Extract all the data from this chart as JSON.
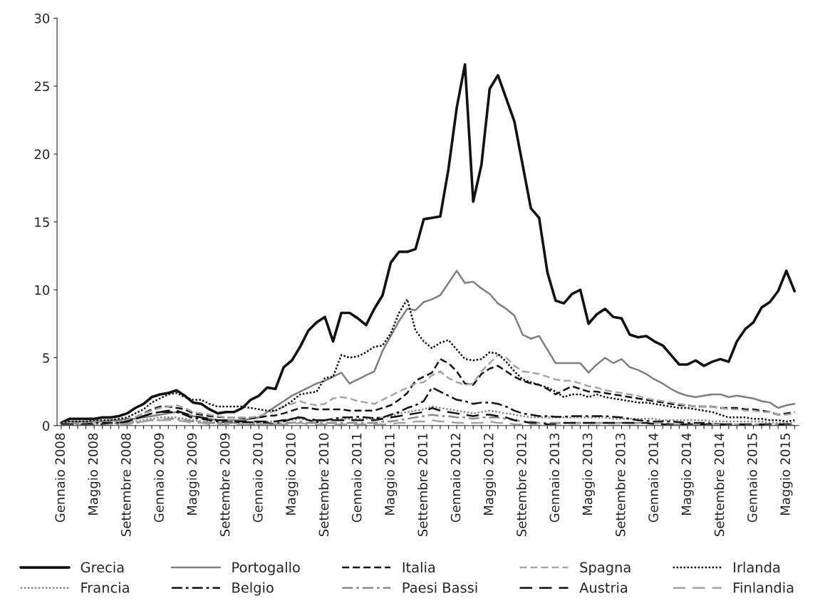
{
  "chart_data": {
    "type": "line",
    "ylim": [
      0,
      30
    ],
    "yticks": [
      0,
      5,
      10,
      15,
      20,
      25,
      30
    ],
    "grid": false,
    "legend": "bottom",
    "marker": "none",
    "categories": [
      "Gennaio 2008",
      null,
      null,
      null,
      "Maggio 2008",
      null,
      null,
      null,
      "Settembre 2008",
      null,
      null,
      null,
      "Gennaio 2009",
      null,
      null,
      null,
      "Maggio 2009",
      null,
      null,
      null,
      "Settembre 2009",
      null,
      null,
      null,
      "Gennaio 2010",
      null,
      null,
      null,
      "Maggio 2010",
      null,
      null,
      null,
      "Settembre 2010",
      null,
      null,
      null,
      "Gennaio 2011",
      null,
      null,
      null,
      "Maggio 2011",
      null,
      null,
      null,
      "Settembre 2011",
      null,
      null,
      null,
      "Gennaio 2012",
      null,
      null,
      null,
      "Maggio 2012",
      null,
      null,
      null,
      "Settembre 2012",
      null,
      null,
      null,
      "Gennaio 2013",
      null,
      null,
      null,
      "Maggio 2013",
      null,
      null,
      null,
      "Settembre 2013",
      null,
      null,
      null,
      "Gennaio 2014",
      null,
      null,
      null,
      "Maggio 2014",
      null,
      null,
      null,
      "Settembre 2014",
      null,
      null,
      null,
      "Gennaio 2015",
      null,
      null,
      null,
      "Maggio 2015",
      null
    ],
    "series": [
      {
        "name": "Grecia",
        "color": "#111111",
        "line_style": "solid",
        "values": [
          0.2,
          0.5,
          0.5,
          0.5,
          0.5,
          0.6,
          0.6,
          0.7,
          0.9,
          1.3,
          1.6,
          2.1,
          2.3,
          2.4,
          2.6,
          2.2,
          1.7,
          1.6,
          1.2,
          0.9,
          1.0,
          1.0,
          1.3,
          1.9,
          2.2,
          2.8,
          2.7,
          4.3,
          4.8,
          5.8,
          7.0,
          7.6,
          8.0,
          6.2,
          8.3,
          8.3,
          7.9,
          7.4,
          8.6,
          9.6,
          12.0,
          12.8,
          12.8,
          13.0,
          15.2,
          15.3,
          15.4,
          18.9,
          23.4,
          26.6,
          16.5,
          19.2,
          24.8,
          25.8,
          24.1,
          22.4,
          19.2,
          16.0,
          15.3,
          11.3,
          9.2,
          9.0,
          9.7,
          10.0,
          7.5,
          8.2,
          8.6,
          8.0,
          7.9,
          6.7,
          6.5,
          6.6,
          6.2,
          5.9,
          5.2,
          4.5,
          4.5,
          4.8,
          4.4,
          4.7,
          4.9,
          4.7,
          6.2,
          7.1,
          7.6,
          8.7,
          9.1,
          9.9,
          11.4,
          9.9
        ]
      },
      {
        "name": "Portogallo",
        "color": "#7f7f7f",
        "line_style": "solid",
        "values": [
          0.2,
          0.3,
          0.3,
          0.3,
          0.3,
          0.3,
          0.4,
          0.4,
          0.5,
          0.5,
          0.6,
          0.7,
          0.8,
          0.9,
          1.0,
          0.9,
          0.7,
          0.6,
          0.5,
          0.4,
          0.4,
          0.4,
          0.4,
          0.5,
          0.6,
          1.0,
          1.4,
          1.8,
          2.2,
          2.5,
          2.8,
          3.1,
          3.3,
          3.6,
          3.9,
          3.1,
          3.4,
          3.7,
          4.0,
          5.5,
          6.6,
          7.7,
          8.6,
          8.5,
          9.1,
          9.3,
          9.6,
          10.5,
          11.4,
          10.5,
          10.6,
          10.1,
          9.7,
          9.0,
          8.6,
          8.1,
          6.7,
          6.4,
          6.6,
          5.6,
          4.6,
          4.6,
          4.6,
          4.6,
          3.9,
          4.5,
          5.0,
          4.6,
          4.9,
          4.3,
          4.1,
          3.8,
          3.4,
          3.1,
          2.7,
          2.4,
          2.2,
          2.1,
          2.2,
          2.3,
          2.3,
          2.1,
          2.2,
          2.1,
          2.0,
          1.8,
          1.7,
          1.3,
          1.5,
          1.6
        ]
      },
      {
        "name": "Italia",
        "color": "#111111",
        "line_style": "dashed",
        "values": [
          0.2,
          0.2,
          0.2,
          0.2,
          0.3,
          0.3,
          0.3,
          0.3,
          0.4,
          0.6,
          0.9,
          1.2,
          1.4,
          1.4,
          1.3,
          1.2,
          0.9,
          0.8,
          0.7,
          0.65,
          0.6,
          0.6,
          0.55,
          0.55,
          0.6,
          0.7,
          0.75,
          0.9,
          1.1,
          1.3,
          1.3,
          1.2,
          1.2,
          1.2,
          1.2,
          1.1,
          1.1,
          1.1,
          1.1,
          1.3,
          1.5,
          1.9,
          2.4,
          3.3,
          3.6,
          3.9,
          4.9,
          4.6,
          4.0,
          3.1,
          3.0,
          3.8,
          4.2,
          4.4,
          4.0,
          3.6,
          3.3,
          3.1,
          3.0,
          2.7,
          2.3,
          2.6,
          2.9,
          2.7,
          2.5,
          2.5,
          2.4,
          2.3,
          2.2,
          2.1,
          2.0,
          1.9,
          1.8,
          1.7,
          1.6,
          1.5,
          1.5,
          1.4,
          1.4,
          1.4,
          1.3,
          1.3,
          1.3,
          1.2,
          1.2,
          1.1,
          1.0,
          0.8,
          0.9,
          1.0
        ]
      },
      {
        "name": "Spagna",
        "color": "#a6a6a6",
        "line_style": "dashed",
        "values": [
          0.2,
          0.2,
          0.2,
          0.2,
          0.3,
          0.3,
          0.3,
          0.3,
          0.4,
          0.6,
          0.9,
          1.1,
          1.3,
          1.4,
          1.5,
          1.3,
          1.0,
          0.9,
          0.8,
          0.7,
          0.6,
          0.6,
          0.6,
          0.6,
          0.7,
          0.9,
          1.1,
          1.4,
          1.6,
          1.8,
          1.6,
          1.5,
          1.6,
          2.0,
          2.1,
          2.0,
          1.8,
          1.7,
          1.6,
          1.9,
          2.2,
          2.5,
          2.8,
          3.1,
          3.2,
          3.7,
          4.0,
          3.5,
          3.2,
          3.0,
          3.1,
          4.0,
          4.6,
          5.2,
          5.0,
          4.4,
          4.0,
          3.9,
          3.8,
          3.6,
          3.4,
          3.3,
          3.3,
          3.1,
          2.9,
          2.8,
          2.6,
          2.5,
          2.4,
          2.3,
          2.2,
          2.0,
          1.9,
          1.8,
          1.7,
          1.6,
          1.5,
          1.4,
          1.4,
          1.4,
          1.3,
          1.2,
          1.2,
          1.1,
          1.1,
          1.0,
          1.0,
          0.8,
          0.8,
          0.9
        ]
      },
      {
        "name": "Irlanda",
        "color": "#111111",
        "line_style": "dotted",
        "values": [
          0.2,
          0.3,
          0.3,
          0.3,
          0.4,
          0.4,
          0.4,
          0.5,
          0.6,
          0.9,
          1.2,
          1.7,
          2.0,
          2.3,
          2.4,
          2.1,
          1.9,
          1.9,
          1.6,
          1.4,
          1.4,
          1.4,
          1.4,
          1.3,
          1.2,
          1.1,
          1.1,
          1.4,
          1.8,
          2.3,
          2.4,
          2.5,
          3.5,
          3.6,
          5.2,
          5.0,
          5.1,
          5.4,
          5.8,
          5.9,
          6.8,
          8.3,
          9.3,
          7.0,
          6.2,
          5.7,
          6.1,
          6.3,
          5.6,
          4.9,
          4.8,
          4.9,
          5.4,
          5.3,
          4.7,
          4.0,
          3.4,
          3.2,
          3.0,
          2.8,
          2.5,
          2.1,
          2.3,
          2.3,
          2.1,
          2.3,
          2.1,
          2.0,
          1.9,
          1.8,
          1.7,
          1.7,
          1.6,
          1.5,
          1.4,
          1.3,
          1.3,
          1.2,
          1.1,
          1.0,
          0.8,
          0.6,
          0.6,
          0.6,
          0.5,
          0.5,
          0.4,
          0.4,
          0.3,
          0.4
        ]
      },
      {
        "name": "Francia",
        "color": "#8c8c8c",
        "line_style": "dotted",
        "values": [
          0.1,
          0.1,
          0.1,
          0.1,
          0.1,
          0.1,
          0.1,
          0.2,
          0.2,
          0.3,
          0.4,
          0.5,
          0.6,
          0.6,
          0.6,
          0.5,
          0.4,
          0.3,
          0.3,
          0.2,
          0.2,
          0.2,
          0.2,
          0.2,
          0.2,
          0.3,
          0.3,
          0.4,
          0.4,
          0.5,
          0.4,
          0.3,
          0.4,
          0.4,
          0.5,
          0.5,
          0.5,
          0.5,
          0.5,
          0.6,
          0.7,
          0.9,
          1.0,
          1.1,
          1.2,
          1.4,
          1.3,
          1.2,
          1.1,
          1.0,
          0.9,
          1.0,
          1.1,
          1.0,
          0.9,
          0.8,
          0.7,
          0.6,
          0.6,
          0.6,
          0.6,
          0.6,
          0.6,
          0.6,
          0.6,
          0.6,
          0.6,
          0.5,
          0.5,
          0.5,
          0.5,
          0.5,
          0.5,
          0.4,
          0.4,
          0.4,
          0.4,
          0.4,
          0.4,
          0.3,
          0.3,
          0.3,
          0.3,
          0.3,
          0.3,
          0.3,
          0.2,
          0.2,
          0.2,
          0.3
        ]
      },
      {
        "name": "Belgio",
        "color": "#111111",
        "line_style": "dashdot",
        "values": [
          0.1,
          0.1,
          0.1,
          0.1,
          0.2,
          0.2,
          0.2,
          0.2,
          0.3,
          0.5,
          0.7,
          0.9,
          1.0,
          1.0,
          1.0,
          0.8,
          0.55,
          0.5,
          0.4,
          0.3,
          0.25,
          0.25,
          0.25,
          0.25,
          0.25,
          0.2,
          0.1,
          0.3,
          0.5,
          0.65,
          0.4,
          0.25,
          0.4,
          0.5,
          0.6,
          0.6,
          0.65,
          0.6,
          0.55,
          0.6,
          0.8,
          1.0,
          1.3,
          1.5,
          1.8,
          2.8,
          2.5,
          2.2,
          1.9,
          1.8,
          1.6,
          1.7,
          1.7,
          1.6,
          1.4,
          1.1,
          0.9,
          0.8,
          0.7,
          0.7,
          0.65,
          0.65,
          0.7,
          0.7,
          0.7,
          0.7,
          0.7,
          0.65,
          0.6,
          0.5,
          0.4,
          0.35,
          0.3,
          0.3,
          0.3,
          0.25,
          0.2,
          0.2,
          0.2,
          0.15,
          0.1,
          0.05,
          0.05,
          0.05,
          0.0,
          0.0,
          0.0,
          0.0,
          0.0,
          0.0
        ]
      },
      {
        "name": "Paesi Bassi",
        "color": "#8c8c8c",
        "line_style": "dashdot",
        "values": [
          0.1,
          0.1,
          0.1,
          0.1,
          0.1,
          0.1,
          0.1,
          0.1,
          0.2,
          0.2,
          0.3,
          0.4,
          0.4,
          0.5,
          0.5,
          0.4,
          0.3,
          0.3,
          0.2,
          0.2,
          0.2,
          0.2,
          0.1,
          0.1,
          0.1,
          0.1,
          0.1,
          0.2,
          0.2,
          0.3,
          0.2,
          0.2,
          0.2,
          0.2,
          0.2,
          0.2,
          0.2,
          0.2,
          0.2,
          0.3,
          0.3,
          0.4,
          0.5,
          0.6,
          0.7,
          0.8,
          0.7,
          0.7,
          0.6,
          0.6,
          0.5,
          0.6,
          0.6,
          0.6,
          0.5,
          0.4,
          0.3,
          0.3,
          0.2,
          0.2,
          0.2,
          0.2,
          0.2,
          0.2,
          0.2,
          0.2,
          0.2,
          0.2,
          0.2,
          0.2,
          0.2,
          0.2,
          0.2,
          0.2,
          0.1,
          0.1,
          0.1,
          0.1,
          0.1,
          0.1,
          0.1,
          0.1,
          0.1,
          0.1,
          0.1,
          0.1,
          0.1,
          0.1,
          0.1,
          0.1
        ]
      },
      {
        "name": "Austria",
        "color": "#111111",
        "line_style": "longdash",
        "values": [
          0.1,
          0.1,
          0.1,
          0.1,
          0.1,
          0.1,
          0.2,
          0.2,
          0.3,
          0.5,
          0.7,
          0.9,
          1.0,
          1.1,
          1.1,
          0.9,
          0.7,
          0.6,
          0.5,
          0.4,
          0.4,
          0.3,
          0.3,
          0.3,
          0.3,
          0.3,
          0.3,
          0.4,
          0.5,
          0.6,
          0.5,
          0.4,
          0.4,
          0.4,
          0.4,
          0.4,
          0.4,
          0.4,
          0.4,
          0.5,
          0.6,
          0.7,
          0.8,
          0.9,
          1.0,
          1.3,
          1.1,
          1.0,
          0.9,
          0.8,
          0.7,
          0.8,
          0.8,
          0.7,
          0.6,
          0.4,
          0.3,
          0.2,
          0.2,
          0.1,
          0.1,
          0.2,
          0.2,
          0.2,
          0.2,
          0.2,
          0.2,
          0.2,
          0.2,
          0.2,
          0.2,
          0.2,
          0.1,
          0.1,
          0.1,
          0.1,
          0.1,
          0.1,
          0.1,
          0.1,
          0.1,
          0.1,
          0.1,
          0.1,
          0.1,
          0.1,
          0.1,
          0.1,
          0.1,
          0.1
        ]
      },
      {
        "name": "Finlandia",
        "color": "#a6a6a6",
        "line_style": "longdash",
        "values": [
          0.0,
          0.0,
          0.0,
          0.0,
          0.0,
          0.0,
          0.1,
          0.1,
          0.1,
          0.2,
          0.3,
          0.4,
          0.4,
          0.4,
          0.4,
          0.3,
          0.2,
          0.2,
          0.1,
          0.1,
          0.1,
          0.1,
          0.1,
          0.1,
          0.1,
          0.1,
          0.1,
          0.1,
          0.1,
          0.2,
          0.1,
          0.1,
          0.1,
          0.1,
          0.1,
          0.1,
          0.1,
          0.1,
          0.1,
          0.1,
          0.1,
          0.2,
          0.2,
          0.3,
          0.3,
          0.4,
          0.3,
          0.3,
          0.2,
          0.2,
          0.2,
          0.2,
          0.3,
          0.2,
          0.2,
          0.1,
          0.1,
          0.1,
          0.0,
          0.0,
          0.0,
          0.0,
          0.0,
          0.0,
          0.0,
          0.0,
          0.0,
          0.0,
          0.0,
          0.0,
          0.0,
          0.0,
          0.0,
          0.0,
          0.0,
          0.0,
          0.0,
          0.0,
          0.0,
          0.0,
          0.0,
          0.0,
          0.0,
          0.0,
          0.0,
          0.0,
          0.0,
          0.0,
          0.0,
          0.0
        ]
      }
    ]
  }
}
